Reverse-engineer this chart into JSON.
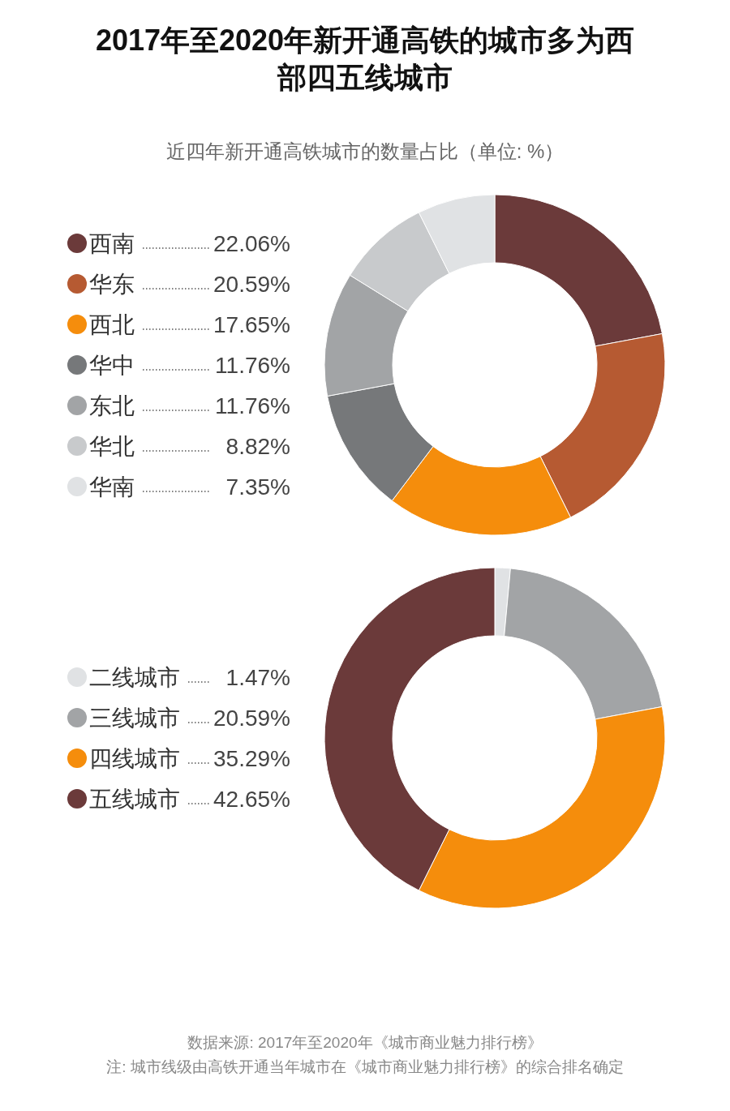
{
  "chart_data": [
    {
      "type": "donut",
      "title": "2017年至2020年新开通高铁的城市多为西部四五线城市",
      "subtitle": "近四年新开通高铁城市的数量占比（单位: %）",
      "legend": "left",
      "categories": [
        "西南",
        "华东",
        "西北",
        "华中",
        "东北",
        "华北",
        "华南"
      ],
      "values": [
        22.06,
        20.59,
        17.65,
        11.76,
        11.76,
        8.82,
        7.35
      ],
      "value_labels": [
        "22.06%",
        "20.59%",
        "17.65%",
        "11.76%",
        "11.76%",
        "8.82%",
        "7.35%"
      ],
      "colors": [
        "#6b3a3a",
        "#b65a32",
        "#f58d0c",
        "#76787a",
        "#a2a4a6",
        "#c8cacc",
        "#e0e2e4"
      ]
    },
    {
      "type": "donut",
      "legend": "left",
      "categories": [
        "二线城市",
        "三线城市",
        "四线城市",
        "五线城市"
      ],
      "values": [
        1.47,
        20.59,
        35.29,
        42.65
      ],
      "value_labels": [
        "1.47%",
        "20.59%",
        "35.29%",
        "42.65%"
      ],
      "colors": [
        "#e0e2e4",
        "#a2a4a6",
        "#f58d0c",
        "#6b3a3a"
      ],
      "annotations": [
        "数据来源: 2017年至2020年《城市商业魅力排行榜》",
        "注: 城市线级由高铁开通当年城市在《城市商业魅力排行榜》的综合排名确定"
      ]
    }
  ]
}
